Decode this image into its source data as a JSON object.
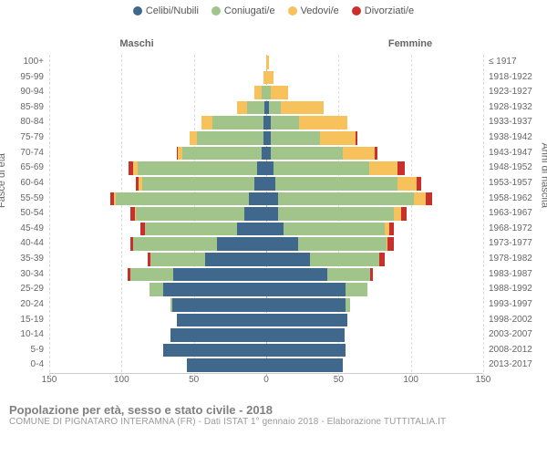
{
  "legend": [
    {
      "label": "Celibi/Nubili",
      "color": "#40688c"
    },
    {
      "label": "Coniugati/e",
      "color": "#a0c489"
    },
    {
      "label": "Vedovi/e",
      "color": "#f7c15c"
    },
    {
      "label": "Divorziati/e",
      "color": "#c9302c"
    }
  ],
  "gender_left": "Maschi",
  "gender_right": "Femmine",
  "y_axis_left": "Fasce di età",
  "y_axis_right": "Anni di nascita",
  "x_ticks": [
    -150,
    -100,
    -50,
    0,
    50,
    100,
    150
  ],
  "x_max": 150,
  "colors": {
    "grid": "#dddddd",
    "center": "#bbbbbb",
    "tick_text": "#666666",
    "bg": "#ffffff"
  },
  "caption_title": "Popolazione per età, sesso e stato civile - 2018",
  "caption_sub": "COMUNE DI PIGNATARO INTERAMNA (FR) - Dati ISTAT 1° gennaio 2018 - Elaborazione TUTTITALIA.IT",
  "rows": [
    {
      "age": "100+",
      "birth": "≤ 1917",
      "m": [
        0,
        0,
        0,
        0
      ],
      "f": [
        0,
        0,
        2,
        0
      ]
    },
    {
      "age": "95-99",
      "birth": "1918-1922",
      "m": [
        0,
        0,
        2,
        0
      ],
      "f": [
        0,
        0,
        5,
        0
      ]
    },
    {
      "age": "90-94",
      "birth": "1923-1927",
      "m": [
        0,
        3,
        5,
        0
      ],
      "f": [
        0,
        3,
        12,
        0
      ]
    },
    {
      "age": "85-89",
      "birth": "1928-1932",
      "m": [
        1,
        12,
        7,
        0
      ],
      "f": [
        2,
        8,
        30,
        0
      ]
    },
    {
      "age": "80-84",
      "birth": "1933-1937",
      "m": [
        2,
        35,
        8,
        0
      ],
      "f": [
        3,
        20,
        33,
        0
      ]
    },
    {
      "age": "75-79",
      "birth": "1938-1942",
      "m": [
        2,
        46,
        5,
        0
      ],
      "f": [
        3,
        34,
        25,
        1
      ]
    },
    {
      "age": "70-74",
      "birth": "1943-1947",
      "m": [
        3,
        55,
        3,
        1
      ],
      "f": [
        3,
        50,
        22,
        2
      ]
    },
    {
      "age": "65-69",
      "birth": "1948-1952",
      "m": [
        6,
        83,
        3,
        3
      ],
      "f": [
        5,
        66,
        20,
        5
      ]
    },
    {
      "age": "60-64",
      "birth": "1953-1957",
      "m": [
        8,
        78,
        2,
        2
      ],
      "f": [
        6,
        85,
        13,
        3
      ]
    },
    {
      "age": "55-59",
      "birth": "1958-1962",
      "m": [
        12,
        92,
        1,
        3
      ],
      "f": [
        8,
        94,
        8,
        5
      ]
    },
    {
      "age": "50-54",
      "birth": "1963-1967",
      "m": [
        15,
        75,
        1,
        3
      ],
      "f": [
        8,
        80,
        5,
        4
      ]
    },
    {
      "age": "45-49",
      "birth": "1968-1972",
      "m": [
        20,
        64,
        0,
        3
      ],
      "f": [
        12,
        70,
        3,
        3
      ]
    },
    {
      "age": "40-44",
      "birth": "1973-1977",
      "m": [
        34,
        58,
        0,
        2
      ],
      "f": [
        22,
        61,
        1,
        4
      ]
    },
    {
      "age": "35-39",
      "birth": "1978-1982",
      "m": [
        42,
        38,
        0,
        2
      ],
      "f": [
        30,
        48,
        0,
        4
      ]
    },
    {
      "age": "30-34",
      "birth": "1983-1987",
      "m": [
        64,
        30,
        0,
        2
      ],
      "f": [
        42,
        30,
        0,
        2
      ]
    },
    {
      "age": "25-29",
      "birth": "1988-1992",
      "m": [
        71,
        10,
        0,
        0
      ],
      "f": [
        55,
        15,
        0,
        0
      ]
    },
    {
      "age": "20-24",
      "birth": "1993-1997",
      "m": [
        65,
        1,
        0,
        0
      ],
      "f": [
        55,
        3,
        0,
        0
      ]
    },
    {
      "age": "15-19",
      "birth": "1998-2002",
      "m": [
        62,
        0,
        0,
        0
      ],
      "f": [
        56,
        0,
        0,
        0
      ]
    },
    {
      "age": "10-14",
      "birth": "2003-2007",
      "m": [
        66,
        0,
        0,
        0
      ],
      "f": [
        54,
        0,
        0,
        0
      ]
    },
    {
      "age": "5-9",
      "birth": "2008-2012",
      "m": [
        71,
        0,
        0,
        0
      ],
      "f": [
        55,
        0,
        0,
        0
      ]
    },
    {
      "age": "0-4",
      "birth": "2013-2017",
      "m": [
        55,
        0,
        0,
        0
      ],
      "f": [
        53,
        0,
        0,
        0
      ]
    }
  ]
}
